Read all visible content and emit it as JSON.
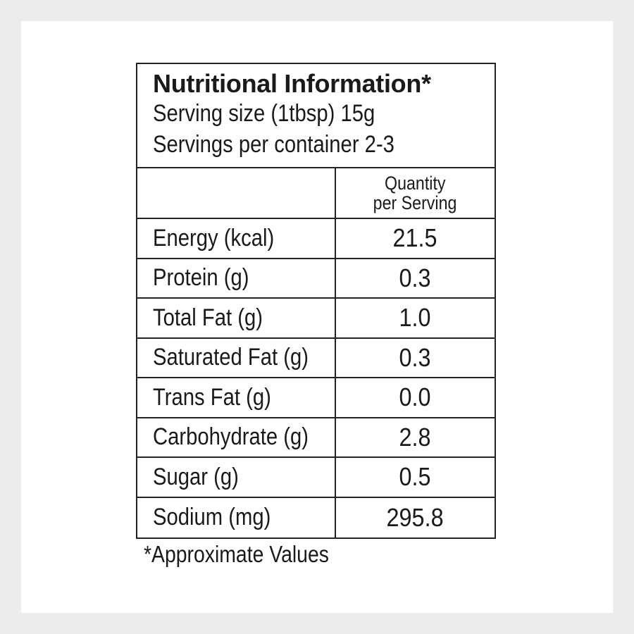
{
  "title": "Nutritional Information*",
  "serving_size": "Serving size (1tbsp) 15g",
  "servings_per_container": "Servings per container 2-3",
  "column_header": {
    "line1": "Quantity",
    "line2": "per Serving"
  },
  "rows": [
    {
      "name": "Energy (kcal)",
      "value": "21.5"
    },
    {
      "name": "Protein (g)",
      "value": "0.3"
    },
    {
      "name": "Total Fat (g)",
      "value": "1.0"
    },
    {
      "name": "Saturated Fat (g)",
      "value": "0.3"
    },
    {
      "name": "Trans Fat (g)",
      "value": "0.0"
    },
    {
      "name": "Carbohydrate (g)",
      "value": "2.8"
    },
    {
      "name": "Sugar (g)",
      "value": "0.5"
    },
    {
      "name": "Sodium (mg)",
      "value": "295.8"
    }
  ],
  "footnote": "*Approximate Values"
}
